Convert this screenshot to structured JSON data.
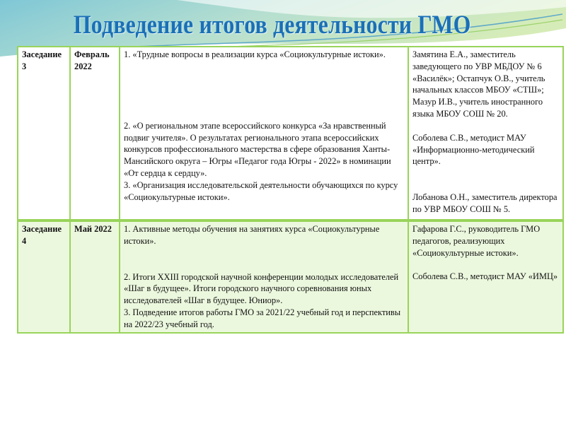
{
  "slide": {
    "title": "Подведение итогов деятельности ГМО"
  },
  "colors": {
    "title": "#1a70b8",
    "border": "#98d45a",
    "row_alt_bg": "#ecf8de"
  },
  "rows": [
    {
      "session": "Заседание 3",
      "date": "Февраль 2022",
      "topics": [
        "1.  «Трудные вопросы в реализации курса «Социокультурные истоки».",
        "2. «О региональном этапе всероссийского конкурса «За нравственный подвиг учителя». О результатах регионального этапа всероссийских конкурсов профессионального мастерства в сфере образования Ханты-Мансийского округа – Югры «Педагог года Югры - 2022» в номинации «От сердца к сердцу».",
        "3. «Организация исследовательской деятельности обучающихся по курсу «Социокультурные истоки»."
      ],
      "speakers": [
        "Замятина Е.А., заместитель заведующего по УВР МБДОУ № 6 «Василёк»; Остапчук О.В., учитель начальных классов МБОУ «СТШ»; Мазур И.В., учитель иностранного языка МБОУ СОШ № 20.",
        "Соболева С.В., методист МАУ «Информационно-методический центр».",
        "Лобанова О.Н., заместитель директора по УВР МБОУ СОШ № 5."
      ]
    },
    {
      "session": "Заседание 4",
      "date": "Май 2022",
      "topics": [
        "1. Активные методы обучения на занятиях курса «Социокультурные истоки».",
        "2. Итоги XXIII городской научной конференции молодых исследователей «Шаг в будущее».  Итоги городского научного соревнования юных исследователей «Шаг в будущее. Юниор».",
        "3. Подведение итогов работы ГМО за 2021/22 учебный год и перспективы на 2022/23 учебный год."
      ],
      "speakers": [
        "Гафарова Г.С., руководитель ГМО педагогов, реализующих «Социокультурные истоки».",
        "Соболева С.В., методист МАУ «ИМЦ»"
      ]
    }
  ]
}
